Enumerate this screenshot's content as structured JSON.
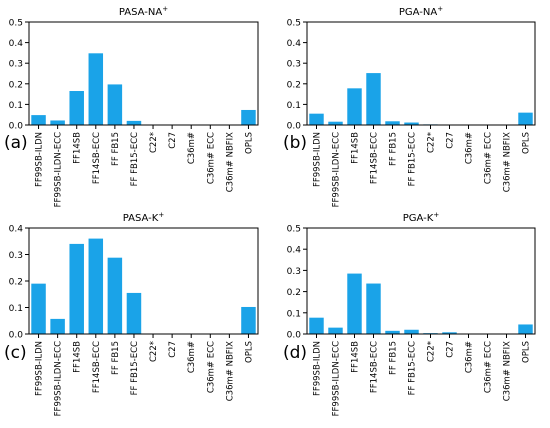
{
  "figure": {
    "bar_color": "#1aa3e8",
    "axis_color": "#000000"
  },
  "chart_data": [
    {
      "type": "bar",
      "panel_label": "(a)",
      "title": "PASA-NA",
      "title_superscript": "+",
      "categories": [
        "FF99SB-ILDN",
        "FF99SB-ILDN-ECC",
        "FF14SB",
        "FF14SB-ECC",
        "FF FB15",
        "FF FB15-ECC",
        "C22*",
        "C27",
        "C36m#",
        "C36m# ECC",
        "C36m# NBFIX",
        "OPLS"
      ],
      "values": [
        0.048,
        0.022,
        0.165,
        0.348,
        0.197,
        0.02,
        0,
        0,
        0,
        0,
        0,
        0.073
      ],
      "ylim": [
        0,
        0.5
      ],
      "yticks": [
        "0.5",
        "0.4",
        "0.3",
        "0.2",
        "0.1",
        "0.0"
      ]
    },
    {
      "type": "bar",
      "panel_label": "(b)",
      "title": "PGA-NA",
      "title_superscript": "+",
      "categories": [
        "FF99SB-ILDN",
        "FF99SB-ILDN-ECC",
        "FF14SB",
        "FF14SB-ECC",
        "FF FB15",
        "FF FB15-ECC",
        "C22*",
        "C27",
        "C36m#",
        "C36m# ECC",
        "C36m# NBFIX",
        "OPLS"
      ],
      "values": [
        0.055,
        0.016,
        0.178,
        0.252,
        0.018,
        0.012,
        0.003,
        0.001,
        0.001,
        0.001,
        0.001,
        0.06
      ],
      "ylim": [
        0,
        0.5
      ],
      "yticks": [
        "0.5",
        "0.4",
        "0.3",
        "0.2",
        "0.1",
        "0.0"
      ]
    },
    {
      "type": "bar",
      "panel_label": "(c)",
      "title": "PASA-K",
      "title_superscript": "+",
      "categories": [
        "FF99SB-ILDN",
        "FF99SB-ILDN-ECC",
        "FF14SB",
        "FF14SB-ECC",
        "FF FB15",
        "FF FB15-ECC",
        "C22*",
        "C27",
        "C36m#",
        "C36m# ECC",
        "C36m# NBFIX",
        "OPLS"
      ],
      "values": [
        0.19,
        0.057,
        0.34,
        0.36,
        0.288,
        0.155,
        0,
        0,
        0,
        0,
        0,
        0.102
      ],
      "ylim": [
        0,
        0.4
      ],
      "yticks": [
        "0.4",
        "0.3",
        "0.2",
        "0.1",
        "0.0"
      ]
    },
    {
      "type": "bar",
      "panel_label": "(d)",
      "title": "PGA-K",
      "title_superscript": "+",
      "categories": [
        "FF99SB-ILDN",
        "FF99SB-ILDN-ECC",
        "FF14SB",
        "FF14SB-ECC",
        "FF FB15",
        "FF FB15-ECC",
        "C22*",
        "C27",
        "C36m#",
        "C36m# ECC",
        "C36m# NBFIX",
        "OPLS"
      ],
      "values": [
        0.077,
        0.03,
        0.285,
        0.238,
        0.015,
        0.02,
        0.004,
        0.008,
        0.002,
        0.002,
        0.001,
        0.045
      ],
      "ylim": [
        0,
        0.5
      ],
      "yticks": [
        "0.5",
        "0.4",
        "0.3",
        "0.2",
        "0.1",
        "0.0"
      ]
    }
  ]
}
